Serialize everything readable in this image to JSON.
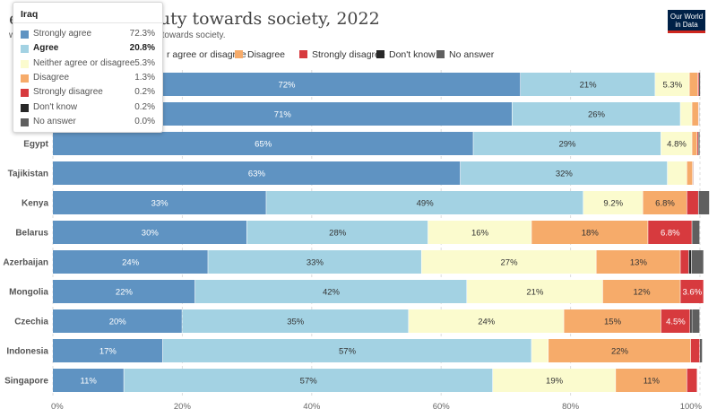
{
  "header": {
    "title": "e that work is a duty towards society, 2022",
    "subtitle": "w much they agree that work is a duty towards society.",
    "logo_line1": "Our World",
    "logo_line2": "in Data"
  },
  "legend": [
    {
      "label": "r agree or disagree",
      "color": "#fbfbce",
      "x": 172
    },
    {
      "label": "Disagree",
      "color": "#f6ab6a",
      "x": 262
    },
    {
      "label": "Strongly disagree",
      "color": "#d73a3e",
      "x": 334
    },
    {
      "label": "Don't know",
      "color": "#282828",
      "x": 420
    },
    {
      "label": "No answer",
      "color": "#5f5f5f",
      "x": 487
    }
  ],
  "tooltip": {
    "country": "Iraq",
    "rows": [
      {
        "name": "Strongly agree",
        "value": "72.3%",
        "color": "#5f93c2",
        "bold": false
      },
      {
        "name": "Agree",
        "value": "20.8%",
        "color": "#a3d2e3",
        "bold": true
      },
      {
        "name": "Neither agree or disagree",
        "value": "5.3%",
        "color": "#fbfbce",
        "bold": false
      },
      {
        "name": "Disagree",
        "value": "1.3%",
        "color": "#f6ab6a",
        "bold": false
      },
      {
        "name": "Strongly disagree",
        "value": "0.2%",
        "color": "#d73a3e",
        "bold": false
      },
      {
        "name": "Don't know",
        "value": "0.2%",
        "color": "#282828",
        "bold": false
      },
      {
        "name": "No answer",
        "value": "0.0%",
        "color": "#5f5f5f",
        "bold": false
      }
    ]
  },
  "chart_data": {
    "type": "bar",
    "orientation": "horizontal",
    "stacked": true,
    "title": "e that work is a duty towards society, 2022",
    "xlim": [
      0,
      100
    ],
    "x_ticks": [
      "0%",
      "20%",
      "40%",
      "60%",
      "80%",
      "100%"
    ],
    "categories": [
      "",
      "",
      "Egypt",
      "Tajikistan",
      "Kenya",
      "Belarus",
      "Azerbaijan",
      "Mongolia",
      "Czechia",
      "Indonesia",
      "Singapore"
    ],
    "series": [
      {
        "name": "Strongly agree",
        "color": "#5f93c2",
        "label_color": "#ffffff",
        "values": [
          72.3,
          71,
          65,
          63,
          33,
          30,
          24,
          22,
          20,
          17,
          11
        ],
        "labels": [
          "72%",
          "71%",
          "65%",
          "63%",
          "33%",
          "30%",
          "24%",
          "22%",
          "20%",
          "17%",
          "11%"
        ]
      },
      {
        "name": "Agree",
        "color": "#a3d2e3",
        "label_color": "#333333",
        "values": [
          20.8,
          26,
          29,
          32,
          49,
          28,
          33,
          42,
          35,
          57,
          57
        ],
        "labels": [
          "21%",
          "26%",
          "29%",
          "32%",
          "49%",
          "28%",
          "33%",
          "42%",
          "35%",
          "57%",
          "57%"
        ]
      },
      {
        "name": "Neither agree or disagree",
        "color": "#fbfbce",
        "label_color": "#333333",
        "values": [
          5.3,
          1.8,
          4.8,
          3,
          9.2,
          16,
          27,
          21,
          24,
          2.6,
          19
        ],
        "labels": [
          "5.3%",
          "",
          "4.8%",
          "",
          "9.2%",
          "16%",
          "27%",
          "21%",
          "24%",
          "",
          "19%"
        ]
      },
      {
        "name": "Disagree",
        "color": "#f6ab6a",
        "label_color": "#333333",
        "values": [
          1.3,
          1,
          0.8,
          0.9,
          6.8,
          18,
          13,
          12,
          15,
          22,
          11
        ],
        "labels": [
          "",
          "",
          "",
          "",
          "6.8%",
          "18%",
          "13%",
          "12%",
          "15%",
          "22%",
          "11%"
        ]
      },
      {
        "name": "Strongly disagree",
        "color": "#d73a3e",
        "label_color": "#ffffff",
        "values": [
          0.2,
          0.1,
          0.2,
          0.1,
          1.8,
          6.8,
          1.3,
          3.6,
          4.5,
          1.4,
          1.6
        ],
        "labels": [
          "",
          "",
          "",
          "",
          "",
          "6.8%",
          "",
          "3.6%",
          "4.5%",
          "",
          ""
        ]
      },
      {
        "name": "Don't know",
        "color": "#282828",
        "label_color": "#ffffff",
        "values": [
          0.2,
          0.1,
          0.2,
          0.1,
          0,
          0,
          0.4,
          0,
          0.3,
          0,
          0
        ],
        "labels": [
          "",
          "",
          "",
          "",
          "",
          "",
          "",
          "",
          "",
          "",
          ""
        ]
      },
      {
        "name": "No answer",
        "color": "#5f5f5f",
        "label_color": "#ffffff",
        "values": [
          0,
          0,
          0,
          0,
          1.7,
          1.2,
          1.9,
          0,
          1.2,
          0.4,
          0
        ],
        "labels": [
          "",
          "",
          "",
          "",
          "",
          "",
          "",
          "",
          "",
          "",
          ""
        ]
      }
    ]
  }
}
